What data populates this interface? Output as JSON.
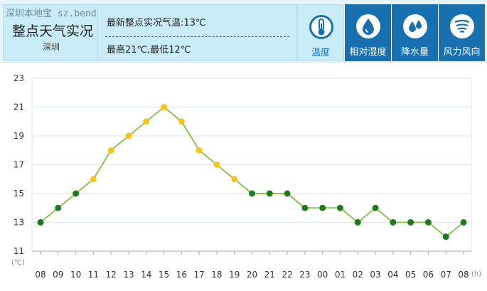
{
  "header": {
    "watermark": "深圳本地宝  sz.bendibao.com",
    "title": "整点天气实况",
    "city": "深圳",
    "current_temp": "最新整点实况气温:13℃",
    "high_low": "最高21℃,最低12℃"
  },
  "tabs": [
    {
      "label": "温度",
      "icon": "thermometer-icon",
      "active": true
    },
    {
      "label": "相对湿度",
      "icon": "humidity-icon",
      "active": false
    },
    {
      "label": "降水量",
      "icon": "rain-drops-icon",
      "active": false
    },
    {
      "label": "风力风向",
      "icon": "wind-icon",
      "active": false
    }
  ],
  "colors": {
    "tab_blue": "#1771b1",
    "panel_light": "#c8ecf8",
    "line": "#8dc150",
    "point_yellow": "#f5c518",
    "point_green": "#1e7a1e",
    "grid": "#dde6ee"
  },
  "chart_data": {
    "type": "line",
    "title": "",
    "ylabel": "(℃)",
    "xlabel": "(h)",
    "ylim": [
      11,
      23
    ],
    "yticks": [
      11,
      13,
      15,
      17,
      19,
      21,
      23
    ],
    "categories": [
      "08",
      "09",
      "10",
      "11",
      "12",
      "13",
      "14",
      "15",
      "16",
      "17",
      "18",
      "19",
      "20",
      "21",
      "22",
      "23",
      "00",
      "01",
      "02",
      "03",
      "04",
      "05",
      "06",
      "07",
      "08"
    ],
    "series": [
      {
        "name": "温度",
        "values": [
          13,
          14,
          15,
          16,
          18,
          19,
          20,
          21,
          20,
          18,
          17,
          16,
          15,
          15,
          15,
          14,
          14,
          14,
          13,
          14,
          13,
          13,
          13,
          12,
          13
        ]
      }
    ],
    "yellow_threshold": 16
  }
}
